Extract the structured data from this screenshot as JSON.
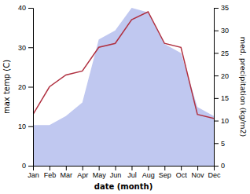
{
  "chart_data": {
    "type": "line",
    "xlabel": "date (month)",
    "ylabel": "max temp (C)",
    "y2label": "med. precipitation (kg/m2)",
    "categories": [
      "Jan",
      "Feb",
      "Mar",
      "Apr",
      "May",
      "Jun",
      "Jul",
      "Aug",
      "Sep",
      "Oct",
      "Nov",
      "Dec"
    ],
    "series": [
      {
        "type": "area",
        "color": "#c0c8f0",
        "axis": "y2",
        "values": [
          9,
          9,
          11,
          14,
          28,
          30,
          35,
          34,
          27,
          25,
          13,
          11
        ]
      },
      {
        "type": "line",
        "color": "#b03040",
        "values": [
          13,
          20,
          23,
          24,
          30,
          31,
          37,
          39,
          31,
          30,
          13,
          12
        ]
      }
    ],
    "ylim": [
      0,
      40
    ],
    "yticks": [
      0,
      10,
      20,
      30,
      40
    ],
    "y2lim": [
      0,
      35
    ],
    "y2ticks": [
      0,
      5,
      10,
      15,
      20,
      25,
      30,
      35
    ],
    "grid": false
  }
}
